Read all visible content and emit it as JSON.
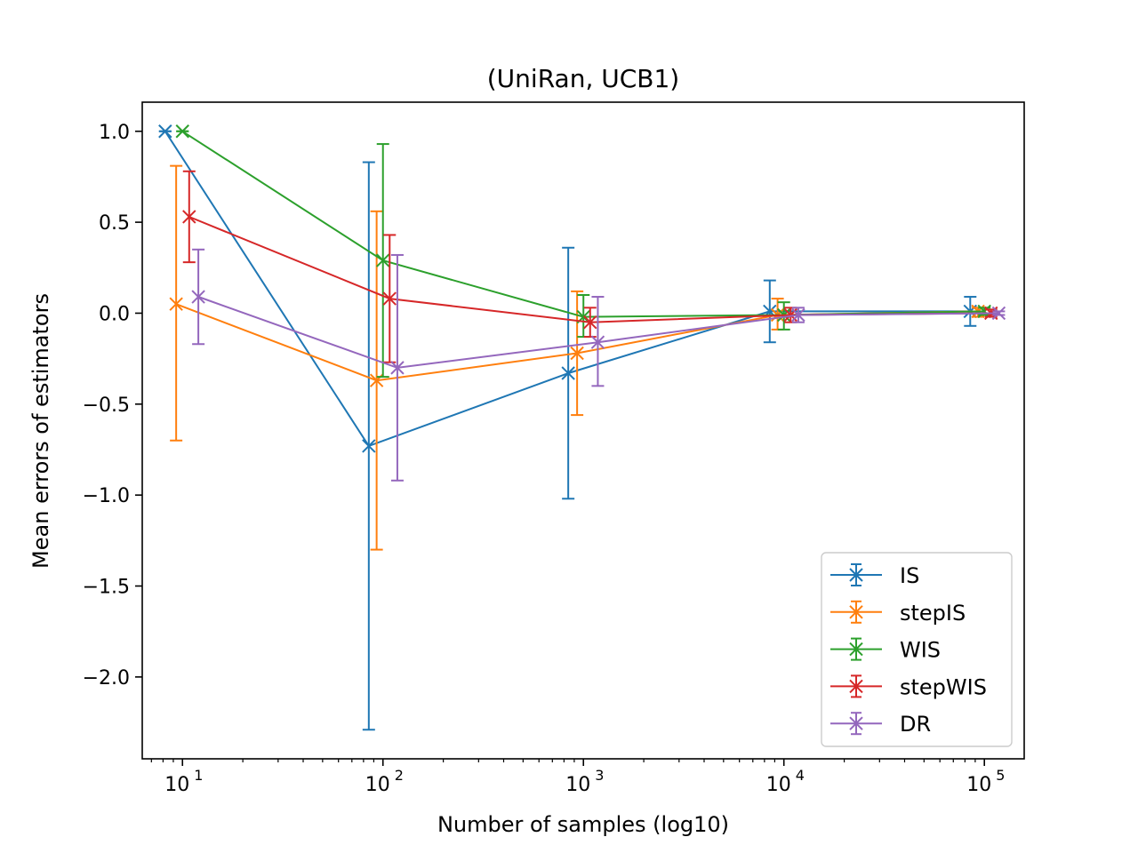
{
  "chart_data": {
    "type": "line",
    "title": "(UniRan, UCB1)",
    "xlabel": "Number of samples (log10)",
    "ylabel": "Mean errors of estimators",
    "xscale": "log",
    "xlim": [
      6.3,
      158000
    ],
    "ylim": [
      -2.45,
      1.16
    ],
    "x_tick_exponents": [
      1,
      2,
      3,
      4,
      5
    ],
    "x_tick_base": "10",
    "y_ticks": [
      1.0,
      0.5,
      0.0,
      -0.5,
      -1.0,
      -1.5,
      -2.0
    ],
    "y_tick_labels": [
      "1.0",
      "0.5",
      "0.0",
      "−0.5",
      "−1.0",
      "−1.5",
      "−2.0"
    ],
    "grid": false,
    "legend_position": "lower-right",
    "series": [
      {
        "name": "IS",
        "color": "#1f77b4",
        "points": [
          {
            "x": 8.2,
            "y": 1.0,
            "lo": 1.0,
            "hi": 1.0
          },
          {
            "x": 85,
            "y": -0.73,
            "lo": -2.29,
            "hi": 0.83
          },
          {
            "x": 840,
            "y": -0.33,
            "lo": -1.02,
            "hi": 0.36
          },
          {
            "x": 8500,
            "y": 0.01,
            "lo": -0.16,
            "hi": 0.18
          },
          {
            "x": 85000,
            "y": 0.01,
            "lo": -0.07,
            "hi": 0.09
          }
        ]
      },
      {
        "name": "stepIS",
        "color": "#ff7f0e",
        "points": [
          {
            "x": 9.3,
            "y": 0.05,
            "lo": -0.7,
            "hi": 0.81
          },
          {
            "x": 93,
            "y": -0.37,
            "lo": -1.3,
            "hi": 0.56
          },
          {
            "x": 930,
            "y": -0.22,
            "lo": -0.56,
            "hi": 0.12
          },
          {
            "x": 9300,
            "y": -0.01,
            "lo": -0.09,
            "hi": 0.08
          },
          {
            "x": 93000,
            "y": 0.01,
            "lo": -0.02,
            "hi": 0.03
          }
        ]
      },
      {
        "name": "WIS",
        "color": "#2ca02c",
        "points": [
          {
            "x": 10.0,
            "y": 1.0,
            "lo": 1.0,
            "hi": 1.0
          },
          {
            "x": 100,
            "y": 0.29,
            "lo": -0.35,
            "hi": 0.93
          },
          {
            "x": 1000,
            "y": -0.02,
            "lo": -0.13,
            "hi": 0.1
          },
          {
            "x": 10000,
            "y": -0.01,
            "lo": -0.09,
            "hi": 0.06
          },
          {
            "x": 100000,
            "y": 0.01,
            "lo": -0.01,
            "hi": 0.03
          }
        ]
      },
      {
        "name": "stepWIS",
        "color": "#d62728",
        "points": [
          {
            "x": 10.8,
            "y": 0.53,
            "lo": 0.28,
            "hi": 0.78
          },
          {
            "x": 108,
            "y": 0.08,
            "lo": -0.27,
            "hi": 0.43
          },
          {
            "x": 1080,
            "y": -0.05,
            "lo": -0.13,
            "hi": 0.03
          },
          {
            "x": 10800,
            "y": -0.01,
            "lo": -0.05,
            "hi": 0.03
          },
          {
            "x": 108000,
            "y": 0.0,
            "lo": -0.02,
            "hi": 0.02
          }
        ]
      },
      {
        "name": "DR",
        "color": "#9467bd",
        "points": [
          {
            "x": 12.0,
            "y": 0.09,
            "lo": -0.17,
            "hi": 0.35
          },
          {
            "x": 118,
            "y": -0.3,
            "lo": -0.92,
            "hi": 0.32
          },
          {
            "x": 1180,
            "y": -0.16,
            "lo": -0.4,
            "hi": 0.09
          },
          {
            "x": 11800,
            "y": -0.01,
            "lo": -0.05,
            "hi": 0.03
          },
          {
            "x": 118000,
            "y": 0.0,
            "lo": -0.01,
            "hi": 0.01
          }
        ]
      }
    ]
  }
}
